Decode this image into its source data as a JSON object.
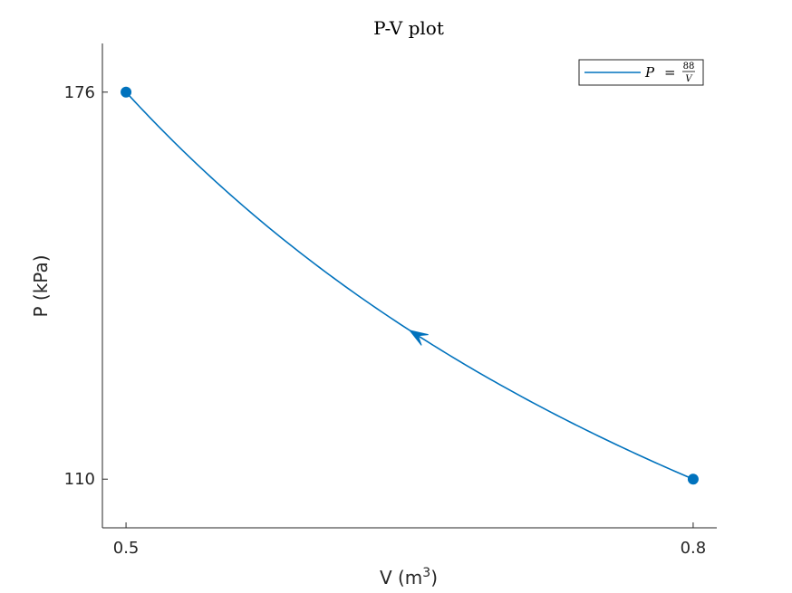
{
  "chart_data": {
    "type": "line",
    "title": "P-V plot",
    "xlabel": "V (m",
    "xlabel_sup": "3",
    "xlabel_close": ")",
    "ylabel": "P (kPa)",
    "xlim": [
      0.4875,
      0.8125
    ],
    "ylim": [
      101.7,
      184.3
    ],
    "xticks": [
      0.5,
      0.8
    ],
    "yticks": [
      110,
      176
    ],
    "xtick_labels": [
      "0.5",
      "0.8"
    ],
    "ytick_labels": [
      "110",
      "176"
    ],
    "series": [
      {
        "name_lhs": "P",
        "name_eq": "=",
        "name_num": "88",
        "name_den": "V",
        "formula_constant": 88,
        "x_start": 0.5,
        "x_end": 0.8,
        "color": "#0072BD",
        "arrow_at_x": 0.65,
        "direction": "right-to-left"
      }
    ],
    "endpoints": [
      {
        "x": 0.5,
        "y": 176
      },
      {
        "x": 0.8,
        "y": 110
      }
    ],
    "grid": false,
    "legend": "top-right",
    "box": false
  }
}
